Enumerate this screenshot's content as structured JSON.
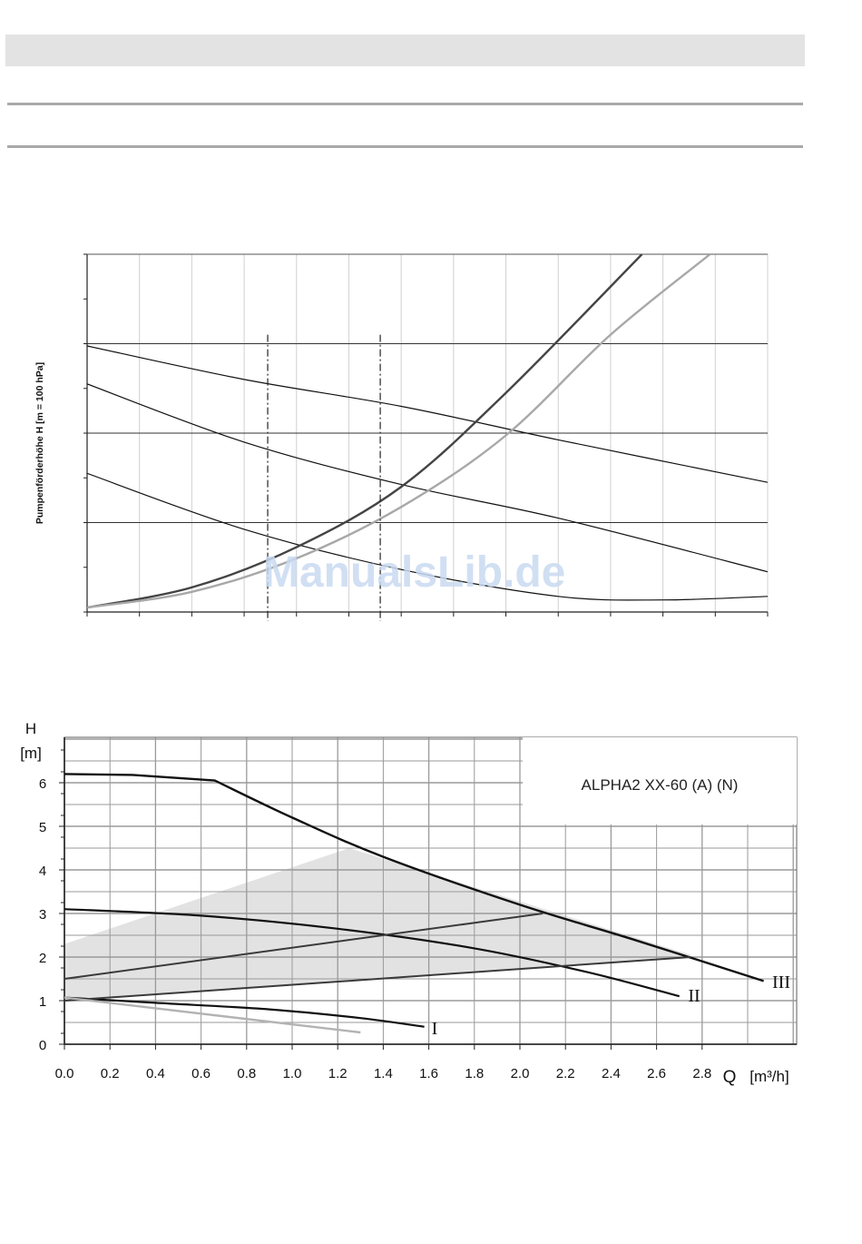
{
  "watermark": "ManualsLib.de",
  "chart_data": [
    {
      "type": "line",
      "ylabel": "Pumpenförderhöhe H [m = 100 hPa]",
      "xlabel": "",
      "title": "",
      "grid": true,
      "xlim": [
        0,
        13
      ],
      "ylim": [
        0,
        8
      ],
      "series": [
        {
          "x": [
            0,
            3,
            6,
            9,
            13
          ],
          "y": [
            5.95,
            5.2,
            4.6,
            3.85,
            2.9
          ]
        },
        {
          "x": [
            0,
            3,
            6,
            9,
            13
          ],
          "y": [
            5.1,
            3.8,
            2.85,
            2.1,
            0.9
          ]
        },
        {
          "x": [
            0,
            3,
            6,
            9,
            11,
            13
          ],
          "y": [
            3.1,
            1.85,
            0.95,
            0.35,
            0.27,
            0.35
          ]
        },
        {
          "x": [
            0,
            2,
            4,
            6,
            8,
            10.6
          ],
          "y": [
            0.1,
            0.55,
            1.45,
            2.8,
            4.9,
            8.0
          ]
        },
        {
          "x": [
            0,
            2,
            4,
            6,
            8,
            10,
            11.9
          ],
          "y": [
            0.1,
            0.45,
            1.2,
            2.35,
            3.95,
            6.2,
            8.0
          ]
        }
      ],
      "vlines": [
        3.45,
        5.6
      ],
      "colors": {
        "curve": "#111111",
        "dark_system": "#444444",
        "light_system": "#a8a8a8"
      }
    },
    {
      "type": "line",
      "title": "ALPHA2 XX-60 (A) (N)",
      "ylabel": "H\n[m]",
      "ylabel_lines": [
        "H",
        "[m]"
      ],
      "xlabel": "Q [m³/h]",
      "xlabel_parts": [
        "Q",
        "[m³/h]"
      ],
      "xlim": [
        0,
        3.2
      ],
      "ylim": [
        0,
        7
      ],
      "grid": true,
      "xticks": [
        "0.0",
        "0.2",
        "0.4",
        "0.6",
        "0.8",
        "1.0",
        "1.2",
        "1.4",
        "1.6",
        "1.8",
        "2.0",
        "2.2",
        "2.4",
        "2.6",
        "2.8"
      ],
      "yticks": [
        "0",
        "1",
        "2",
        "3",
        "4",
        "5",
        "6"
      ],
      "shaded_area": {
        "x": [
          0,
          1.25,
          2.75,
          2.75,
          0
        ],
        "y": [
          2.3,
          4.5,
          2.05,
          2.0,
          1.0
        ]
      },
      "series": [
        {
          "name": "III",
          "x": [
            0,
            0.3,
            0.66,
            1.0,
            1.4,
            2.0,
            2.5,
            3.07
          ],
          "y": [
            6.2,
            6.18,
            6.05,
            5.2,
            4.3,
            3.2,
            2.4,
            1.45
          ]
        },
        {
          "name": "II",
          "x": [
            0,
            0.6,
            1.2,
            1.8,
            2.3,
            2.7
          ],
          "y": [
            3.1,
            2.95,
            2.65,
            2.2,
            1.65,
            1.1
          ]
        },
        {
          "name": "I",
          "x": [
            0,
            0.4,
            0.9,
            1.3,
            1.58
          ],
          "y": [
            1.07,
            0.95,
            0.8,
            0.6,
            0.4
          ]
        },
        {
          "x": [
            0,
            2.1
          ],
          "y": [
            1.5,
            3.0
          ]
        },
        {
          "x": [
            0,
            2.75
          ],
          "y": [
            1.0,
            2.0
          ]
        },
        {
          "x": [
            0,
            1.3
          ],
          "y": [
            1.07,
            0.27
          ]
        }
      ],
      "colors": {
        "curve": "#111111",
        "constant": "#3a3a3a",
        "grey": "#b3b3b3",
        "shade": "#e2e2e2",
        "grid": "#9a9a9a"
      }
    }
  ]
}
